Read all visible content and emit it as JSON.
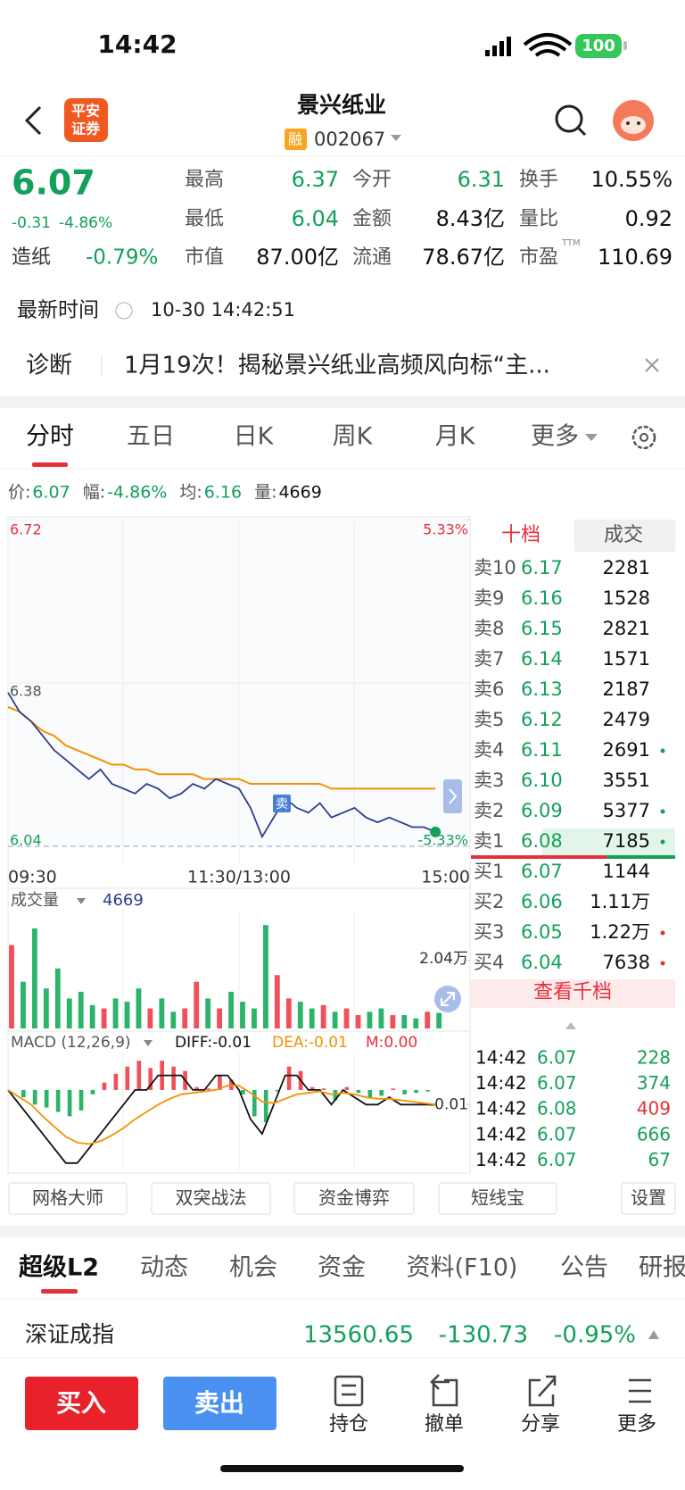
{
  "status_bar": {
    "time": "14:42",
    "battery": "100"
  },
  "header": {
    "broker_logo": [
      "平安",
      "证券"
    ],
    "title": "景兴纸业",
    "badge": "融",
    "code": "002067"
  },
  "quote": {
    "price": "6.07",
    "change": "-0.31",
    "change_pct": "-4.86%",
    "sector": "造纸",
    "sector_pct": "-0.79%",
    "stats": [
      [
        "最高",
        "6.37"
      ],
      [
        "今开",
        "6.31"
      ],
      [
        "换手",
        "10.55%"
      ],
      [
        "最低",
        "6.04"
      ],
      [
        "金额",
        "8.43亿"
      ],
      [
        "量比",
        "0.92"
      ],
      [
        "市值",
        "87.00亿"
      ],
      [
        "流通",
        "78.67亿"
      ],
      [
        "市盈",
        "110.69"
      ]
    ],
    "pe_tag": "TTM"
  },
  "update": {
    "label": "最新时间",
    "time": "10-30 14:42:51"
  },
  "diagnosis": {
    "label": "诊断",
    "text": "1月19次！揭秘景兴纸业高频风向标“主..."
  },
  "chart_tabs": [
    "分时",
    "五日",
    "日K",
    "周K",
    "月K",
    "更多"
  ],
  "info_bar": [
    [
      "价:",
      "6.07"
    ],
    [
      "幅:",
      "-4.86%"
    ],
    [
      "均:",
      "6.16"
    ],
    [
      "量:",
      "4669"
    ]
  ],
  "intraday": {
    "ylim": [
      6.04,
      6.72
    ],
    "yticks": [
      6.72,
      6.38,
      6.04
    ],
    "y2lim": [
      -5.33,
      5.33
    ],
    "y2ticks": [
      {
        "value": 5.33,
        "label": "5.33%"
      },
      {
        "value": -5.33,
        "label": "-5.33%"
      }
    ],
    "x_labels": [
      "09:30",
      "11:30/13:00",
      "15:00"
    ],
    "signal": "卖",
    "price": {
      "color": "#2c3e8c",
      "values": [
        6.36,
        6.32,
        6.3,
        6.27,
        6.24,
        6.22,
        6.2,
        6.18,
        6.2,
        6.17,
        6.16,
        6.15,
        6.17,
        6.16,
        6.14,
        6.15,
        6.17,
        6.16,
        6.18,
        6.17,
        6.16,
        6.12,
        6.06,
        6.1,
        6.14,
        6.12,
        6.11,
        6.13,
        6.1,
        6.11,
        6.12,
        6.1,
        6.09,
        6.1,
        6.09,
        6.08,
        6.08,
        6.07
      ]
    },
    "average": {
      "color": "#f39200",
      "values": [
        6.33,
        6.32,
        6.3,
        6.28,
        6.27,
        6.25,
        6.24,
        6.23,
        6.22,
        6.21,
        6.21,
        6.2,
        6.2,
        6.19,
        6.19,
        6.19,
        6.19,
        6.18,
        6.18,
        6.18,
        6.18,
        6.17,
        6.17,
        6.17,
        6.17,
        6.17,
        6.17,
        6.17,
        6.16,
        6.16,
        6.16,
        6.16,
        6.16,
        6.16,
        6.16,
        6.16,
        6.16,
        6.16
      ]
    }
  },
  "volume": {
    "label": "成交量",
    "current": "4669",
    "ylim": [
      0,
      34000
    ],
    "yticks": [
      {
        "value": 20400,
        "label": "2.04万"
      }
    ],
    "values": [
      25000,
      14000,
      30000,
      12000,
      18000,
      9000,
      11000,
      7000,
      6000,
      9000,
      8000,
      12000,
      6000,
      9000,
      5000,
      6000,
      14000,
      9000,
      6000,
      11000,
      8000,
      6000,
      31000,
      16000,
      9000,
      8000,
      6000,
      7000,
      5000,
      6000,
      4000,
      5000,
      6000,
      4000,
      4000,
      3000,
      5000,
      4669
    ]
  },
  "macd": {
    "label": "MACD (12,26,9)",
    "diff_label": "DIFF:-0.01",
    "dea_label": "DEA:-0.01",
    "m_label": "M:0.00",
    "ylim": [
      -0.055,
      0.025
    ],
    "yticks": [
      {
        "value": -0.01,
        "label": "-0.01"
      }
    ],
    "diff": [
      0,
      -0.01,
      -0.02,
      -0.03,
      -0.04,
      -0.05,
      -0.05,
      -0.04,
      -0.03,
      -0.02,
      -0.01,
      0,
      0,
      0.01,
      0.01,
      0.01,
      0,
      0,
      0.01,
      0.01,
      0,
      -0.02,
      -0.03,
      -0.01,
      0.01,
      0.01,
      0,
      0,
      -0.01,
      0,
      -0.005,
      -0.01,
      -0.01,
      -0.005,
      -0.01,
      -0.01,
      -0.01,
      -0.01
    ],
    "dea": [
      0,
      -0.005,
      -0.01,
      -0.018,
      -0.025,
      -0.032,
      -0.036,
      -0.037,
      -0.035,
      -0.031,
      -0.026,
      -0.02,
      -0.015,
      -0.01,
      -0.006,
      -0.003,
      -0.002,
      -0.001,
      0,
      0.003,
      0.003,
      -0.002,
      -0.008,
      -0.009,
      -0.006,
      -0.003,
      -0.002,
      -0.001,
      -0.003,
      -0.002,
      -0.003,
      -0.005,
      -0.006,
      -0.006,
      -0.007,
      -0.008,
      -0.009,
      -0.01
    ],
    "hist": [
      0,
      -0.005,
      -0.01,
      -0.012,
      -0.015,
      -0.018,
      -0.014,
      -0.003,
      0.005,
      0.011,
      0.016,
      0.02,
      0.015,
      0.02,
      0.016,
      0.013,
      0.002,
      0.001,
      0.01,
      0.007,
      -0.003,
      -0.018,
      -0.022,
      -0.001,
      0.016,
      0.013,
      0.002,
      0.001,
      -0.007,
      0.002,
      -0.002,
      -0.005,
      -0.004,
      0.001,
      -0.003,
      -0.002,
      -0.001,
      0
    ]
  },
  "order_book": {
    "tabs": [
      "十档",
      "成交"
    ],
    "asks": [
      [
        "卖10",
        "6.17",
        "2281"
      ],
      [
        "卖9",
        "6.16",
        "1528"
      ],
      [
        "卖8",
        "6.15",
        "2821"
      ],
      [
        "卖7",
        "6.14",
        "1571"
      ],
      [
        "卖6",
        "6.13",
        "2187"
      ],
      [
        "卖5",
        "6.12",
        "2479"
      ],
      [
        "卖4",
        "6.11",
        "2691"
      ],
      [
        "卖3",
        "6.10",
        "3551"
      ],
      [
        "卖2",
        "6.09",
        "5377"
      ],
      [
        "卖1",
        "6.08",
        "7185"
      ]
    ],
    "bids": [
      [
        "买1",
        "6.07",
        "1144"
      ],
      [
        "买2",
        "6.06",
        "1.11万"
      ],
      [
        "买3",
        "6.05",
        "1.22万"
      ],
      [
        "买4",
        "6.04",
        "7638"
      ]
    ],
    "more": "查看千档"
  },
  "trades": [
    [
      "14:42",
      "6.07",
      "228"
    ],
    [
      "14:42",
      "6.07",
      "374"
    ],
    [
      "14:42",
      "6.08",
      "409"
    ],
    [
      "14:42",
      "6.07",
      "666"
    ],
    [
      "14:42",
      "6.07",
      "67"
    ]
  ],
  "tools": [
    "网格大师",
    "双突战法",
    "资金博弈",
    "短线宝",
    "设置"
  ],
  "bottom_tabs": [
    "超级L2",
    "动态",
    "机会",
    "资金",
    "资料(F10)",
    "公告",
    "研报"
  ],
  "index": {
    "name": "深证成指",
    "value": "13560.65",
    "change": "-130.73",
    "change_pct": "-0.95%"
  },
  "actions": {
    "buy": "买入",
    "sell": "卖出",
    "items": [
      "持仓",
      "撤单",
      "分享",
      "更多"
    ]
  }
}
